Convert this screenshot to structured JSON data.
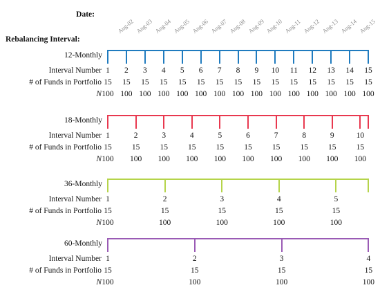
{
  "header": {
    "date_label": "Date:",
    "rebalancing_label": "Rebalancing Interval:"
  },
  "dates": [
    "Aug-02",
    "Aug-03",
    "Aug-04",
    "Aug-05",
    "Aug-06",
    "Aug-07",
    "Aug-08",
    "Aug-09",
    "Aug-10",
    "Aug-11",
    "Aug-12",
    "Aug-13",
    "Aug-14",
    "Aug-15"
  ],
  "row_labels": {
    "interval_number": "Interval Number",
    "funds": "# of Funds in Portfolio",
    "n": "N"
  },
  "panels": [
    {
      "title": "12-Monthly",
      "color": "#1f7bbf",
      "intervals": [
        "1",
        "2",
        "3",
        "4",
        "5",
        "6",
        "7",
        "8",
        "9",
        "10",
        "11",
        "12",
        "13",
        "14",
        "15"
      ],
      "funds": "15",
      "n": "100"
    },
    {
      "title": "18-Monthly",
      "color": "#e8384f",
      "intervals": [
        "1",
        "2",
        "3",
        "4",
        "5",
        "6",
        "7",
        "8",
        "9",
        "10"
      ],
      "funds": "15",
      "n": "100"
    },
    {
      "title": "36-Monthly",
      "color": "#b5d44a",
      "intervals": [
        "1",
        "2",
        "3",
        "4",
        "5"
      ],
      "funds": "15",
      "n": "100"
    },
    {
      "title": "60-Monthly",
      "color": "#9a5bb5",
      "intervals": [
        "1",
        "2",
        "3",
        "4"
      ],
      "funds": "15",
      "n": "100"
    }
  ]
}
